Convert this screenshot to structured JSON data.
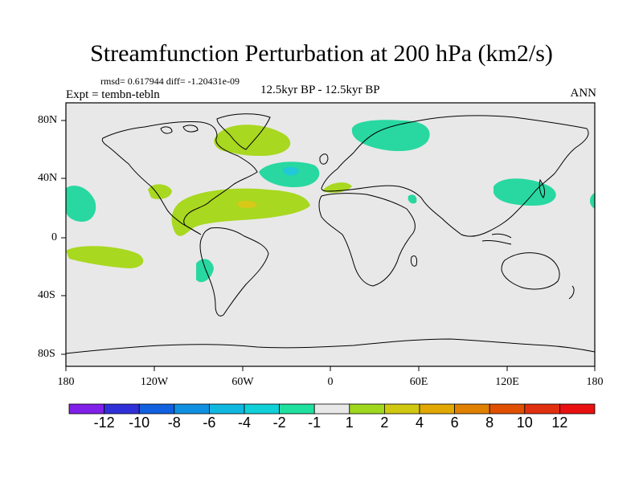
{
  "title": "Streamfunction Perturbation at 200 hPa (km2/s)",
  "rmsd_line": "rmsd= 0.617944 diff= -1.20431e-09",
  "experiment": "Expt = tembn-tebln",
  "period": "12.5kyr BP - 12.5kyr BP",
  "season": "ANN",
  "lon_labels": [
    "180",
    "120W",
    "60W",
    "0",
    "60E",
    "120E",
    "180"
  ],
  "lat_labels": [
    "80N",
    "40N",
    "0",
    "40S",
    "80S"
  ],
  "colors": {
    "land_ocean": "#e8e8e8",
    "positive_1_2": "#a8d820",
    "positive_2_4": "#d8c818",
    "negative_2_1": "#28d8a0",
    "negative_4_2": "#20c8d8"
  },
  "colorbar": {
    "colors": [
      "#8020e8",
      "#3030d8",
      "#1060e0",
      "#1090e0",
      "#10b8e0",
      "#10d0d8",
      "#20e0a0",
      "#e8e8e8",
      "#a0d820",
      "#d0c810",
      "#e0a800",
      "#e08000",
      "#e05000",
      "#e03010",
      "#e81010"
    ],
    "labels": [
      "-12",
      "-10",
      "-8",
      "-6",
      "-4",
      "-2",
      "-1",
      "1",
      "2",
      "4",
      "6",
      "8",
      "10",
      "12"
    ]
  }
}
